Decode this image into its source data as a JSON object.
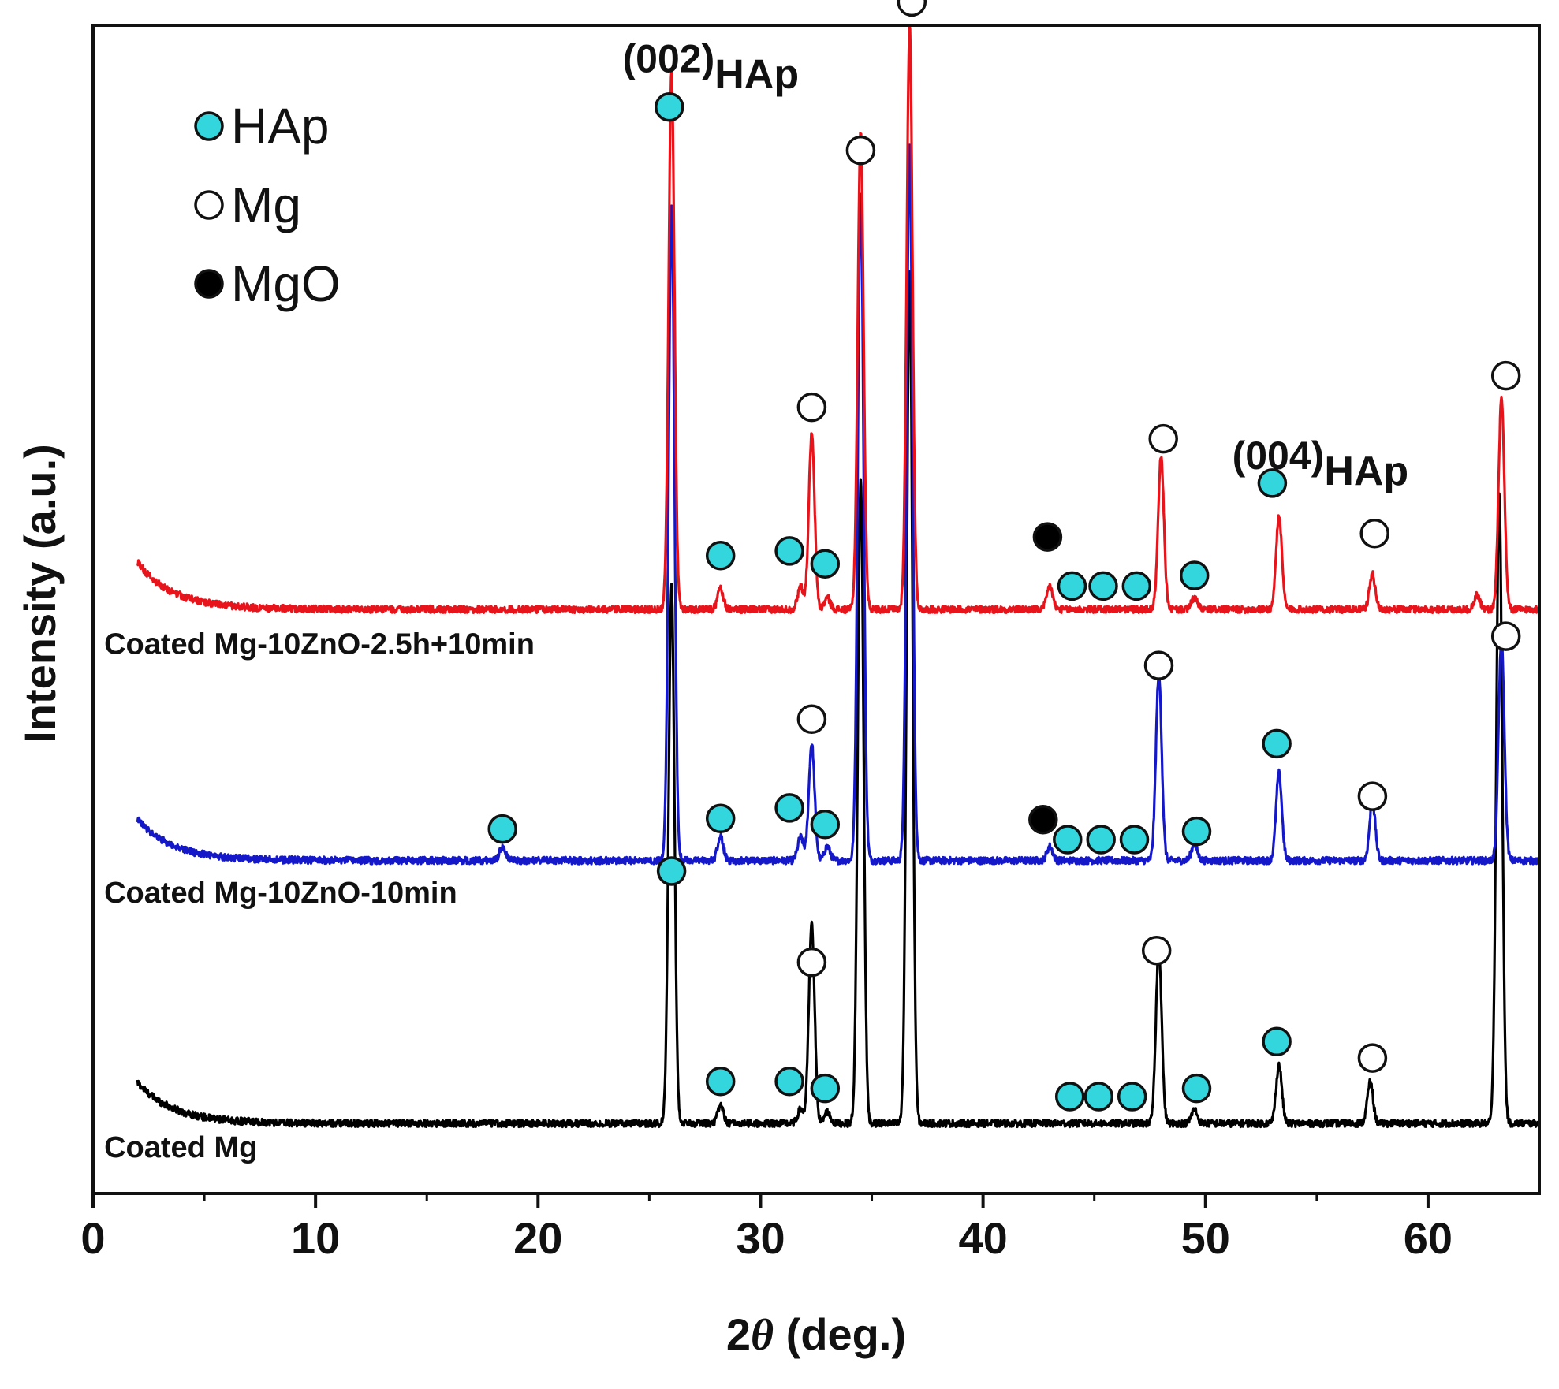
{
  "chart_data": {
    "type": "line",
    "title": "",
    "xlabel_prefix": "2",
    "xlabel_symbol": "θ",
    "xlabel_suffix": " (deg.)",
    "ylabel": "Intensity (a.u.)",
    "xlim": [
      0,
      65
    ],
    "ylim": [
      0,
      1
    ],
    "x_ticks": [
      0,
      10,
      20,
      30,
      40,
      50,
      60
    ],
    "x_tick_labels": [
      "0",
      "10",
      "20",
      "30",
      "40",
      "50",
      "60"
    ],
    "y_ticks_shown": false,
    "grid": false,
    "legend_position": "top-left",
    "legend": [
      {
        "name": "HAp",
        "marker": "filled-cyan"
      },
      {
        "name": "Mg",
        "marker": "open-circle"
      },
      {
        "name": "MgO",
        "marker": "filled-black"
      }
    ],
    "colors": {
      "HAp": "#33d6dc",
      "Mg": "#ffffff",
      "MgO": "#000000",
      "red_series": "#e8141b",
      "blue_series": "#1418c8",
      "black_series": "#000000"
    },
    "series": [
      {
        "name": "Coated Mg",
        "color": "#000000",
        "baseline": 0.06,
        "low_angle_rise": 0.035,
        "peaks": [
          {
            "x": 26.0,
            "h": 0.46
          },
          {
            "x": 28.2,
            "h": 0.015
          },
          {
            "x": 31.8,
            "h": 0.012
          },
          {
            "x": 32.3,
            "h": 0.17
          },
          {
            "x": 33.0,
            "h": 0.01
          },
          {
            "x": 34.5,
            "h": 0.55
          },
          {
            "x": 36.7,
            "h": 0.73
          },
          {
            "x": 47.9,
            "h": 0.15
          },
          {
            "x": 49.5,
            "h": 0.012
          },
          {
            "x": 53.3,
            "h": 0.05
          },
          {
            "x": 57.4,
            "h": 0.035
          },
          {
            "x": 63.2,
            "h": 0.54
          }
        ]
      },
      {
        "name": "Coated Mg-10ZnO-10min",
        "color": "#1418c8",
        "baseline": 0.285,
        "low_angle_rise": 0.035,
        "peaks": [
          {
            "x": 18.4,
            "h": 0.012
          },
          {
            "x": 26.0,
            "h": 0.56
          },
          {
            "x": 28.2,
            "h": 0.02
          },
          {
            "x": 31.8,
            "h": 0.02
          },
          {
            "x": 32.3,
            "h": 0.1
          },
          {
            "x": 33.0,
            "h": 0.012
          },
          {
            "x": 34.5,
            "h": 0.57
          },
          {
            "x": 36.7,
            "h": 0.61
          },
          {
            "x": 43.0,
            "h": 0.012
          },
          {
            "x": 47.9,
            "h": 0.16
          },
          {
            "x": 49.5,
            "h": 0.014
          },
          {
            "x": 53.3,
            "h": 0.075
          },
          {
            "x": 57.5,
            "h": 0.05
          },
          {
            "x": 63.3,
            "h": 0.19
          }
        ]
      },
      {
        "name": "Coated Mg-10ZnO-2.5h+10min",
        "color": "#e8141b",
        "baseline": 0.5,
        "low_angle_rise": 0.04,
        "peaks": [
          {
            "x": 26.0,
            "h": 0.46
          },
          {
            "x": 28.2,
            "h": 0.018
          },
          {
            "x": 31.8,
            "h": 0.02
          },
          {
            "x": 32.3,
            "h": 0.15
          },
          {
            "x": 33.0,
            "h": 0.01
          },
          {
            "x": 34.5,
            "h": 0.41
          },
          {
            "x": 36.7,
            "h": 0.5
          },
          {
            "x": 43.0,
            "h": 0.02
          },
          {
            "x": 48.0,
            "h": 0.13
          },
          {
            "x": 49.5,
            "h": 0.01
          },
          {
            "x": 53.3,
            "h": 0.08
          },
          {
            "x": 57.5,
            "h": 0.03
          },
          {
            "x": 62.2,
            "h": 0.012
          },
          {
            "x": 63.3,
            "h": 0.18
          }
        ]
      }
    ],
    "markers": [
      {
        "phase": "HAp",
        "x": 25.9,
        "y": 0.93
      },
      {
        "phase": "HAp",
        "x": 28.2,
        "y": 0.546
      },
      {
        "phase": "HAp",
        "x": 31.3,
        "y": 0.55
      },
      {
        "phase": "HAp",
        "x": 32.9,
        "y": 0.539
      },
      {
        "phase": "HAp",
        "x": 44.0,
        "y": 0.52
      },
      {
        "phase": "HAp",
        "x": 45.4,
        "y": 0.52
      },
      {
        "phase": "HAp",
        "x": 46.9,
        "y": 0.52
      },
      {
        "phase": "HAp",
        "x": 49.5,
        "y": 0.529
      },
      {
        "phase": "HAp",
        "x": 53.0,
        "y": 0.608
      },
      {
        "phase": "HAp",
        "x": 18.4,
        "y": 0.312
      },
      {
        "phase": "HAp",
        "x": 28.2,
        "y": 0.321
      },
      {
        "phase": "HAp",
        "x": 31.3,
        "y": 0.33
      },
      {
        "phase": "HAp",
        "x": 32.9,
        "y": 0.316
      },
      {
        "phase": "HAp",
        "x": 43.8,
        "y": 0.303
      },
      {
        "phase": "HAp",
        "x": 45.3,
        "y": 0.303
      },
      {
        "phase": "HAp",
        "x": 46.8,
        "y": 0.303
      },
      {
        "phase": "HAp",
        "x": 49.6,
        "y": 0.31
      },
      {
        "phase": "HAp",
        "x": 53.2,
        "y": 0.385
      },
      {
        "phase": "HAp",
        "x": 26.0,
        "y": 0.276
      },
      {
        "phase": "HAp",
        "x": 28.2,
        "y": 0.096
      },
      {
        "phase": "HAp",
        "x": 31.3,
        "y": 0.096
      },
      {
        "phase": "HAp",
        "x": 32.9,
        "y": 0.09
      },
      {
        "phase": "HAp",
        "x": 43.9,
        "y": 0.083
      },
      {
        "phase": "HAp",
        "x": 45.2,
        "y": 0.083
      },
      {
        "phase": "HAp",
        "x": 46.7,
        "y": 0.083
      },
      {
        "phase": "HAp",
        "x": 49.6,
        "y": 0.09
      },
      {
        "phase": "HAp",
        "x": 53.2,
        "y": 0.13
      },
      {
        "phase": "Mg",
        "x": 36.8,
        "y": 1.02
      },
      {
        "phase": "Mg",
        "x": 34.5,
        "y": 0.893
      },
      {
        "phase": "Mg",
        "x": 32.3,
        "y": 0.673
      },
      {
        "phase": "Mg",
        "x": 48.1,
        "y": 0.646
      },
      {
        "phase": "Mg",
        "x": 57.6,
        "y": 0.565
      },
      {
        "phase": "Mg",
        "x": 63.5,
        "y": 0.7
      },
      {
        "phase": "Mg",
        "x": 32.3,
        "y": 0.406
      },
      {
        "phase": "Mg",
        "x": 47.9,
        "y": 0.452
      },
      {
        "phase": "Mg",
        "x": 57.5,
        "y": 0.34
      },
      {
        "phase": "Mg",
        "x": 63.5,
        "y": 0.477
      },
      {
        "phase": "Mg",
        "x": 32.3,
        "y": 0.198
      },
      {
        "phase": "Mg",
        "x": 47.8,
        "y": 0.208
      },
      {
        "phase": "Mg",
        "x": 57.5,
        "y": 0.116
      },
      {
        "phase": "MgO",
        "x": 42.9,
        "y": 0.562
      },
      {
        "phase": "MgO",
        "x": 42.7,
        "y": 0.32
      }
    ],
    "annotations": [
      {
        "main": "(002)",
        "sub": "HAp",
        "x": 23.8,
        "y": 0.96
      },
      {
        "main": "(004)",
        "sub": "HAp",
        "x": 51.2,
        "y": 0.62
      }
    ],
    "series_labels": [
      {
        "text": "Coated Mg-10ZnO-2.5h+10min",
        "x": 0.5,
        "y": 0.462
      },
      {
        "text": "Coated Mg-10ZnO-10min",
        "x": 0.5,
        "y": 0.249
      },
      {
        "text": "Coated Mg",
        "x": 0.5,
        "y": 0.031
      }
    ]
  }
}
